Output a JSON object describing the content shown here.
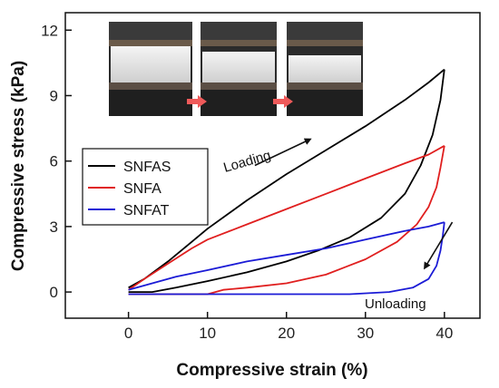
{
  "chart_data": {
    "type": "line",
    "xlabel": "Compressive strain (%)",
    "ylabel": "Compressive stress (kPa)",
    "xlim": [
      -8,
      44.5
    ],
    "ylim": [
      -1.2,
      12.8
    ],
    "xticks": [
      0,
      10,
      20,
      30,
      40
    ],
    "yticks": [
      0,
      3,
      6,
      9,
      12
    ],
    "legend_position": "left-middle",
    "series": [
      {
        "name": "SNFAS",
        "color": "#000000",
        "loading": [
          [
            0,
            0.2
          ],
          [
            2,
            0.6
          ],
          [
            5,
            1.4
          ],
          [
            8,
            2.3
          ],
          [
            10,
            2.9
          ],
          [
            15,
            4.2
          ],
          [
            20,
            5.4
          ],
          [
            25,
            6.5
          ],
          [
            30,
            7.6
          ],
          [
            35,
            8.8
          ],
          [
            38,
            9.6
          ],
          [
            40,
            10.2
          ]
        ],
        "unloading": [
          [
            40,
            10.2
          ],
          [
            39.5,
            8.8
          ],
          [
            38.5,
            7.2
          ],
          [
            37,
            5.8
          ],
          [
            35,
            4.5
          ],
          [
            32,
            3.4
          ],
          [
            28,
            2.5
          ],
          [
            24,
            1.9
          ],
          [
            20,
            1.4
          ],
          [
            15,
            0.9
          ],
          [
            10,
            0.5
          ],
          [
            6,
            0.2
          ],
          [
            3,
            0.0
          ],
          [
            0,
            0.0
          ]
        ]
      },
      {
        "name": "SNFA",
        "color": "#e01f1f",
        "loading": [
          [
            0,
            0.1
          ],
          [
            2,
            0.6
          ],
          [
            5,
            1.3
          ],
          [
            8,
            2.0
          ],
          [
            10,
            2.4
          ],
          [
            15,
            3.1
          ],
          [
            20,
            3.8
          ],
          [
            25,
            4.5
          ],
          [
            30,
            5.2
          ],
          [
            35,
            5.9
          ],
          [
            38,
            6.3
          ],
          [
            40,
            6.7
          ]
        ],
        "unloading": [
          [
            40,
            6.7
          ],
          [
            39.5,
            5.7
          ],
          [
            39,
            4.8
          ],
          [
            38,
            3.9
          ],
          [
            36.5,
            3.1
          ],
          [
            34,
            2.3
          ],
          [
            30,
            1.5
          ],
          [
            25,
            0.8
          ],
          [
            20,
            0.4
          ],
          [
            15,
            0.2
          ],
          [
            12,
            0.1
          ],
          [
            10,
            -0.1
          ],
          [
            5,
            -0.1
          ],
          [
            0,
            -0.1
          ]
        ]
      },
      {
        "name": "SNFAT",
        "color": "#1b1bd6",
        "loading": [
          [
            0,
            0.1
          ],
          [
            3,
            0.4
          ],
          [
            6,
            0.7
          ],
          [
            10,
            1.0
          ],
          [
            15,
            1.4
          ],
          [
            20,
            1.7
          ],
          [
            25,
            2.0
          ],
          [
            30,
            2.4
          ],
          [
            35,
            2.8
          ],
          [
            38,
            3.0
          ],
          [
            40,
            3.2
          ]
        ],
        "unloading": [
          [
            40,
            3.2
          ],
          [
            39.8,
            2.6
          ],
          [
            39.5,
            1.9
          ],
          [
            39,
            1.2
          ],
          [
            38,
            0.6
          ],
          [
            36,
            0.2
          ],
          [
            33,
            0.0
          ],
          [
            28,
            -0.1
          ],
          [
            20,
            -0.1
          ],
          [
            10,
            -0.1
          ],
          [
            0,
            -0.1
          ]
        ]
      }
    ],
    "annotations": [
      {
        "text": "Loading",
        "x": 16,
        "y": 6.8,
        "arrow_from": [
          16,
          5.8
        ],
        "arrow_to": [
          23,
          7.0
        ]
      },
      {
        "text": "Unloading",
        "x": 31.5,
        "y": -0.1,
        "arrow_from": [
          41,
          3.2
        ],
        "arrow_to": [
          37.5,
          1.1
        ]
      }
    ]
  },
  "inset_photo": {
    "frames": 3,
    "arrow_color": "#ef5a5a"
  }
}
